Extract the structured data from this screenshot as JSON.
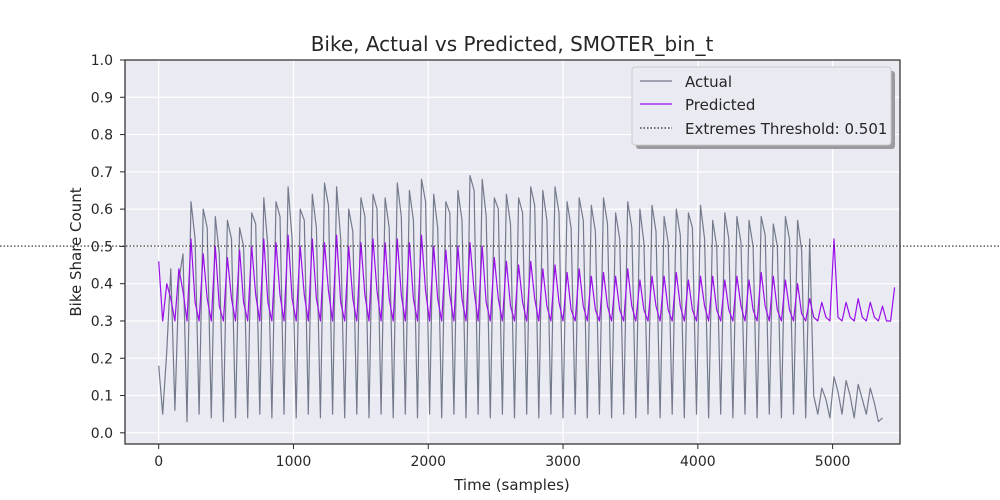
{
  "chart_data": {
    "type": "line",
    "title": "Bike, Actual vs Predicted, SMOTER_bin_t",
    "xlabel": "Time (samples)",
    "ylabel": "Bike Share Count",
    "xlim": [
      -250,
      5500
    ],
    "ylim": [
      -0.03,
      1.0
    ],
    "x_ticks": [
      0,
      1000,
      2000,
      3000,
      4000,
      5000
    ],
    "x_tick_labels": [
      "0",
      "1000",
      "2000",
      "3000",
      "4000",
      "5000"
    ],
    "y_ticks": [
      0.0,
      0.1,
      0.2,
      0.3,
      0.4,
      0.5,
      0.6,
      0.7,
      0.8,
      0.9,
      1.0
    ],
    "y_tick_labels": [
      "0.0",
      "0.1",
      "0.2",
      "0.3",
      "0.4",
      "0.5",
      "0.6",
      "0.7",
      "0.8",
      "0.9",
      "1.0"
    ],
    "grid": true,
    "legend_position": "top-right",
    "sample_count": 5217,
    "colors": {
      "actual": "#737a8c",
      "predicted": "#9a0eea",
      "threshold": "#262626",
      "background": "#eaeaf2",
      "grid": "#ffffff"
    },
    "series": [
      {
        "name": "Actual",
        "key": "actual",
        "x_start": 0,
        "x_step": 30,
        "values": [
          0.18,
          0.05,
          0.22,
          0.44,
          0.06,
          0.41,
          0.48,
          0.03,
          0.62,
          0.52,
          0.05,
          0.6,
          0.55,
          0.04,
          0.58,
          0.48,
          0.03,
          0.57,
          0.52,
          0.04,
          0.55,
          0.5,
          0.04,
          0.59,
          0.56,
          0.05,
          0.63,
          0.5,
          0.04,
          0.62,
          0.58,
          0.05,
          0.66,
          0.52,
          0.04,
          0.6,
          0.57,
          0.05,
          0.64,
          0.55,
          0.04,
          0.67,
          0.61,
          0.05,
          0.66,
          0.52,
          0.04,
          0.6,
          0.54,
          0.05,
          0.63,
          0.58,
          0.04,
          0.64,
          0.6,
          0.05,
          0.63,
          0.55,
          0.04,
          0.67,
          0.58,
          0.05,
          0.65,
          0.57,
          0.04,
          0.68,
          0.62,
          0.05,
          0.64,
          0.55,
          0.04,
          0.62,
          0.59,
          0.05,
          0.65,
          0.57,
          0.04,
          0.69,
          0.65,
          0.05,
          0.68,
          0.58,
          0.04,
          0.63,
          0.6,
          0.05,
          0.64,
          0.56,
          0.04,
          0.63,
          0.59,
          0.05,
          0.66,
          0.61,
          0.04,
          0.65,
          0.57,
          0.05,
          0.66,
          0.59,
          0.04,
          0.62,
          0.55,
          0.05,
          0.63,
          0.57,
          0.04,
          0.61,
          0.54,
          0.05,
          0.63,
          0.56,
          0.04,
          0.59,
          0.52,
          0.05,
          0.62,
          0.55,
          0.04,
          0.6,
          0.51,
          0.05,
          0.61,
          0.54,
          0.04,
          0.58,
          0.51,
          0.05,
          0.6,
          0.53,
          0.04,
          0.59,
          0.55,
          0.05,
          0.61,
          0.52,
          0.04,
          0.57,
          0.5,
          0.05,
          0.59,
          0.52,
          0.04,
          0.58,
          0.51,
          0.05,
          0.57,
          0.5,
          0.04,
          0.58,
          0.53,
          0.05,
          0.56,
          0.5,
          0.04,
          0.58,
          0.52,
          0.05,
          0.57,
          0.49,
          0.04,
          0.52,
          0.1,
          0.05,
          0.12,
          0.09,
          0.04,
          0.15,
          0.11,
          0.05,
          0.14,
          0.1,
          0.04,
          0.13,
          0.09,
          0.05,
          0.12,
          0.08,
          0.03,
          0.04
        ]
      },
      {
        "name": "Predicted",
        "key": "predicted",
        "x_start": 0,
        "x_step": 30,
        "values": [
          0.46,
          0.3,
          0.4,
          0.36,
          0.3,
          0.44,
          0.38,
          0.3,
          0.52,
          0.35,
          0.3,
          0.48,
          0.36,
          0.3,
          0.5,
          0.34,
          0.3,
          0.47,
          0.36,
          0.3,
          0.49,
          0.35,
          0.3,
          0.5,
          0.37,
          0.3,
          0.52,
          0.35,
          0.3,
          0.51,
          0.37,
          0.3,
          0.53,
          0.36,
          0.3,
          0.5,
          0.37,
          0.3,
          0.52,
          0.36,
          0.3,
          0.51,
          0.38,
          0.3,
          0.53,
          0.35,
          0.3,
          0.5,
          0.36,
          0.3,
          0.51,
          0.37,
          0.3,
          0.52,
          0.38,
          0.3,
          0.51,
          0.36,
          0.3,
          0.52,
          0.37,
          0.3,
          0.51,
          0.36,
          0.3,
          0.53,
          0.38,
          0.3,
          0.5,
          0.36,
          0.3,
          0.49,
          0.37,
          0.3,
          0.5,
          0.36,
          0.3,
          0.51,
          0.38,
          0.3,
          0.5,
          0.35,
          0.3,
          0.47,
          0.36,
          0.3,
          0.46,
          0.34,
          0.3,
          0.45,
          0.35,
          0.3,
          0.46,
          0.36,
          0.3,
          0.44,
          0.34,
          0.3,
          0.45,
          0.35,
          0.3,
          0.43,
          0.33,
          0.3,
          0.44,
          0.34,
          0.3,
          0.42,
          0.33,
          0.3,
          0.43,
          0.34,
          0.3,
          0.42,
          0.33,
          0.3,
          0.44,
          0.34,
          0.3,
          0.41,
          0.33,
          0.3,
          0.42,
          0.34,
          0.3,
          0.42,
          0.33,
          0.3,
          0.43,
          0.34,
          0.3,
          0.41,
          0.33,
          0.3,
          0.42,
          0.34,
          0.3,
          0.42,
          0.33,
          0.3,
          0.41,
          0.33,
          0.3,
          0.42,
          0.34,
          0.3,
          0.41,
          0.33,
          0.3,
          0.43,
          0.34,
          0.3,
          0.42,
          0.33,
          0.3,
          0.41,
          0.33,
          0.3,
          0.4,
          0.32,
          0.3,
          0.36,
          0.31,
          0.3,
          0.35,
          0.31,
          0.3,
          0.52,
          0.31,
          0.3,
          0.35,
          0.31,
          0.3,
          0.36,
          0.31,
          0.3,
          0.35,
          0.31,
          0.3,
          0.34,
          0.3,
          0.3,
          0.39
        ]
      }
    ],
    "threshold": {
      "name": "Extremes Threshold: 0.501",
      "value": 0.501
    },
    "legend": [
      "Actual",
      "Predicted",
      "Extremes Threshold: 0.501"
    ]
  }
}
